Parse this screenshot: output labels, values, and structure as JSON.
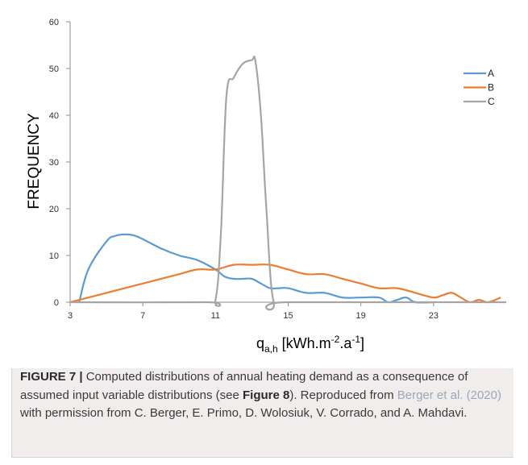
{
  "chart_data": {
    "type": "line",
    "title": "",
    "ylabel": "FREQUENCY",
    "xlabel_main": "q",
    "xlabel_sub": "a,h",
    "xlabel_unit_pre": " [kWh.m",
    "xlabel_unit_exp1": "-2",
    "xlabel_unit_mid": ".a",
    "xlabel_unit_exp2": "-1",
    "xlabel_unit_post": "]",
    "xlim": [
      3,
      27
    ],
    "ylim": [
      0,
      60
    ],
    "xticks": [
      3,
      7,
      11,
      15,
      19,
      23
    ],
    "yticks": [
      0,
      10,
      20,
      30,
      40,
      50,
      60
    ],
    "grid": false,
    "legend_position": "top-right",
    "series": [
      {
        "name": "A",
        "color": "#5b9bd5",
        "x": [
          3.5,
          4,
          5,
          5.5,
          6,
          6.5,
          7,
          8,
          9,
          10,
          11,
          11.5,
          12,
          12.5,
          13,
          13.5,
          14,
          14.5,
          15,
          16,
          17,
          18,
          19,
          20,
          20.5,
          21,
          21.5,
          22,
          23
        ],
        "y": [
          0,
          7,
          13,
          14.2,
          14.5,
          14.3,
          13.5,
          11.5,
          10,
          9,
          7,
          5.5,
          5,
          5,
          5,
          4,
          3,
          3,
          3,
          2,
          2,
          1,
          1,
          1,
          0,
          0.5,
          1,
          0,
          0
        ]
      },
      {
        "name": "B",
        "color": "#ed7d31",
        "x": [
          3,
          4,
          5,
          6,
          7,
          8,
          9,
          10,
          11,
          12,
          13,
          14,
          15,
          16,
          17,
          18,
          19,
          20,
          21,
          22,
          23,
          23.5,
          24,
          24.5,
          25,
          25.5,
          26,
          26.7
        ],
        "y": [
          0,
          1,
          2,
          3,
          4,
          5,
          6,
          7,
          7,
          8,
          8,
          8,
          7,
          6,
          6,
          5,
          4,
          3,
          3,
          2,
          1,
          1.5,
          2,
          1,
          0,
          0.5,
          0,
          1
        ]
      },
      {
        "name": "C",
        "color": "#a5a5a5",
        "x": [
          3,
          10.5,
          11,
          11.3,
          11.6,
          12,
          12.5,
          13,
          13.2,
          13.5,
          13.8,
          14.2,
          15,
          27
        ],
        "y": [
          0,
          0,
          0.5,
          15,
          44,
          48,
          51,
          51.8,
          51.5,
          40,
          20,
          0,
          0,
          0
        ]
      }
    ]
  },
  "caption": {
    "label": "FIGURE 7 |",
    "text_1": " Computed distributions of annual heating demand as a consequence of assumed input variable distributions (see ",
    "fig_ref": "Figure 8",
    "text_2": "). Reproduced from ",
    "citation": "Berger et al. (2020)",
    "text_3": " with permission from C. Berger, E. Primo, D. Wolosiuk, V. Corrado, and A. Mahdavi."
  }
}
